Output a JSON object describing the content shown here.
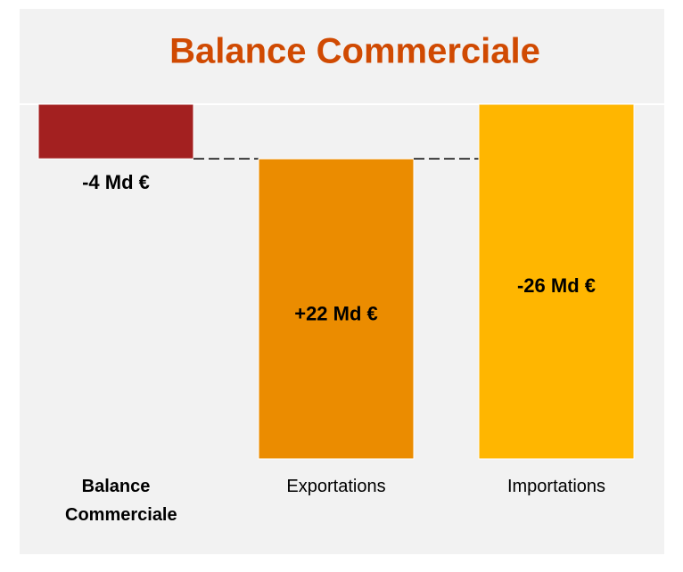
{
  "chart_data": {
    "type": "waterfall",
    "title": "Balance Commerciale",
    "categories": [
      "Balance Commerciale",
      "Exportations",
      "Importations"
    ],
    "values": [
      -4,
      22,
      -26
    ],
    "value_labels": [
      "-4 Md €",
      "+22 Md €",
      "-26 Md €"
    ],
    "colors": [
      "#a32020",
      "#eb8c00",
      "#ffb600"
    ],
    "title_color": "#d04a02"
  }
}
